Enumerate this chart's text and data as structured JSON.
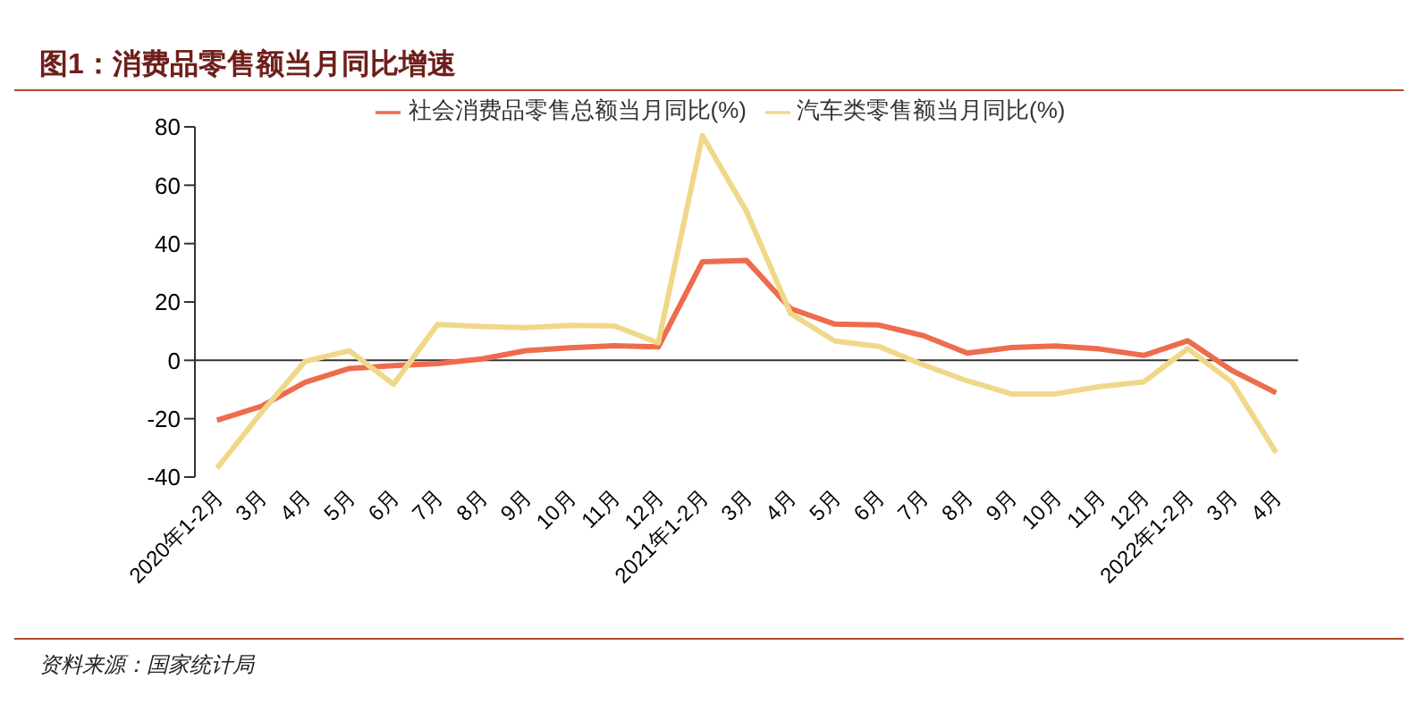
{
  "chart_data": {
    "type": "line",
    "title": "图1：消费品零售额当月同比增速",
    "categories": [
      "2020年1-2月",
      "3月",
      "4月",
      "5月",
      "6月",
      "7月",
      "8月",
      "9月",
      "10月",
      "11月",
      "12月",
      "2021年1-2月",
      "3月",
      "4月",
      "5月",
      "6月",
      "7月",
      "8月",
      "9月",
      "10月",
      "11月",
      "12月",
      "2022年1-2月",
      "3月",
      "4月"
    ],
    "series": [
      {
        "name": "社会消费品零售总额当月同比(%)",
        "color": "#ee6c4d",
        "values": [
          -20.5,
          -15.8,
          -7.5,
          -2.8,
          -1.8,
          -1.1,
          0.5,
          3.3,
          4.3,
          5.0,
          4.6,
          33.8,
          34.2,
          17.7,
          12.4,
          12.1,
          8.5,
          2.5,
          4.4,
          4.9,
          3.9,
          1.7,
          6.7,
          -3.5,
          -11.1
        ]
      },
      {
        "name": "汽车类零售额当月同比(%)",
        "color": "#f0d88a",
        "values": [
          -37,
          -18,
          -0.3,
          3.3,
          -8.2,
          12.3,
          11.6,
          11.2,
          12,
          11.8,
          6,
          77,
          51,
          16,
          6.6,
          4.8,
          -1.5,
          -7,
          -11.5,
          -11.5,
          -9,
          -7.4,
          4,
          -7.5,
          -31.6
        ]
      }
    ],
    "ylim": [
      -40,
      80
    ],
    "yticks": [
      -40,
      -20,
      0,
      20,
      40,
      60,
      80
    ],
    "grid": false,
    "ref_lines": [
      {
        "axis": "y",
        "value": 0,
        "color": "#333333"
      }
    ],
    "legend": "top",
    "marker": "none",
    "line_style": "solid",
    "annotations": [
      "资料来源：国家统计局"
    ]
  }
}
